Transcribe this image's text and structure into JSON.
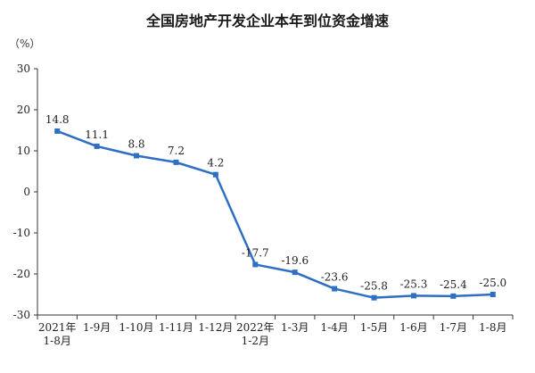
{
  "chart_data": {
    "type": "line",
    "title": "全国房地产开发企业本年到位资金增速",
    "unit_label": "（%）",
    "categories": [
      [
        "2021年",
        "1-8月"
      ],
      [
        "1-9月"
      ],
      [
        "1-10月"
      ],
      [
        "1-11月"
      ],
      [
        "1-12月"
      ],
      [
        "2022年",
        "1-2月"
      ],
      [
        "1-3月"
      ],
      [
        "1-4月"
      ],
      [
        "1-5月"
      ],
      [
        "1-6月"
      ],
      [
        "1-7月"
      ],
      [
        "1-8月"
      ]
    ],
    "values": [
      14.8,
      11.1,
      8.8,
      7.2,
      4.2,
      -17.7,
      -19.6,
      -23.6,
      -25.8,
      -25.3,
      -25.4,
      -25.0
    ],
    "value_labels": [
      "14.8",
      "11.1",
      "8.8",
      "7.2",
      "4.2",
      "-17.7",
      "-19.6",
      "-23.6",
      "-25.8",
      "-25.3",
      "-25.4",
      "-25.0"
    ],
    "ylim": [
      -30,
      30
    ],
    "yticks": [
      "30",
      "20",
      "10",
      "0",
      "-10",
      "-20",
      "-30"
    ],
    "line_color": "#2e6fc4",
    "grid": false,
    "legend": "none"
  }
}
